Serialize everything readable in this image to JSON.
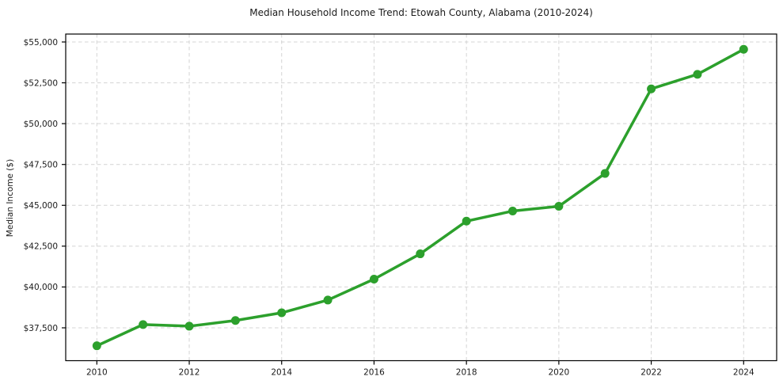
{
  "page": {
    "background_color": "#ffffff"
  },
  "chart_data": {
    "type": "line",
    "title": "Median Household Income Trend: Etowah County, Alabama (2010-2024)",
    "xlabel": "",
    "ylabel": "Median Income ($)",
    "x": [
      2010,
      2011,
      2012,
      2013,
      2014,
      2015,
      2016,
      2017,
      2018,
      2019,
      2020,
      2021,
      2022,
      2023,
      2024
    ],
    "series": [
      {
        "name": "Median household income",
        "color": "#2ca02c",
        "values": [
          36400,
          37700,
          37600,
          37950,
          38420,
          39200,
          40480,
          42030,
          44030,
          44650,
          44940,
          46950,
          52130,
          53020,
          54550
        ]
      }
    ],
    "xlim": [
      2009.326,
      2024.715
    ],
    "ylim": [
      35488,
      55485
    ],
    "xticks": {
      "values": [
        2010,
        2012,
        2014,
        2016,
        2018,
        2020,
        2022,
        2024
      ],
      "labels": [
        "2010",
        "2012",
        "2014",
        "2016",
        "2018",
        "2020",
        "2022",
        "2024"
      ]
    },
    "yticks": {
      "values": [
        37500,
        40000,
        42500,
        45000,
        47500,
        50000,
        52500,
        55000
      ],
      "labels": [
        "$37,500",
        "$40,000",
        "$42,500",
        "$45,000",
        "$47,500",
        "$50,000",
        "$52,500",
        "$55,000"
      ]
    },
    "grid": "dashed, both axes, at major ticks",
    "legend": "none",
    "marker": "circle",
    "colors": {
      "line": "#2ca02c",
      "marker": "#2ca02c",
      "grid": "#d4d4d4",
      "spine": "#000000",
      "text": "#1a1a1a",
      "background": "#ffffff"
    }
  }
}
